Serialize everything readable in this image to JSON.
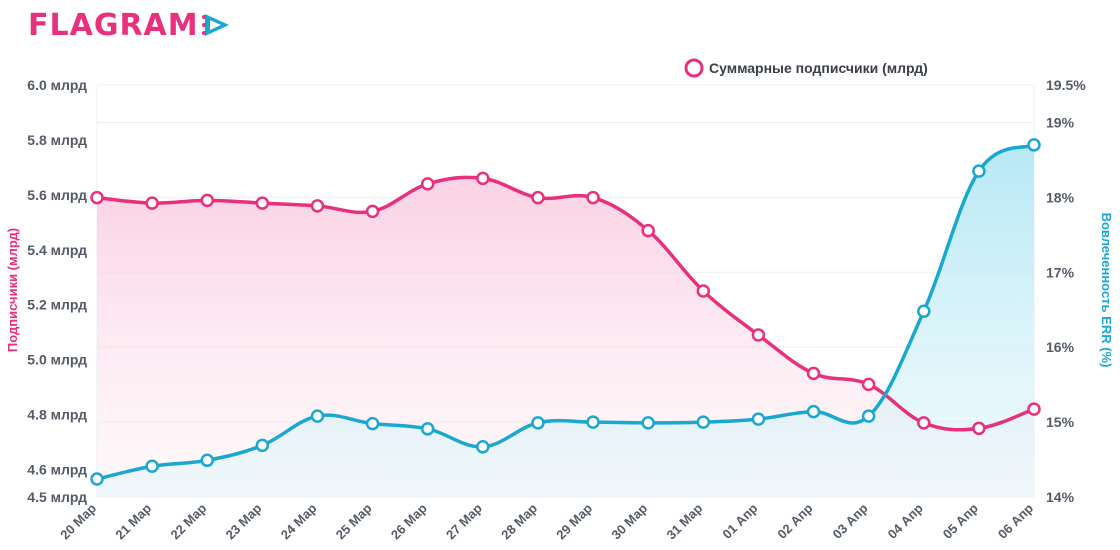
{
  "brand": {
    "name": "FLAGRAM",
    "colors": {
      "primary": "#e8307f",
      "secondary": "#1aa7d2"
    }
  },
  "chart_data": {
    "type": "line",
    "title": "",
    "categories": [
      "20 Мар",
      "21 Мар",
      "22 Мар",
      "23 Мар",
      "24 Мар",
      "25 Мар",
      "26 Мар",
      "27 Мар",
      "28 Мар",
      "29 Мар",
      "30 Мар",
      "31 Мар",
      "01 Апр",
      "02 Апр",
      "03 Апр",
      "04 Апр",
      "05 Апр",
      "06 Апр"
    ],
    "legend": {
      "position": "top-right",
      "entries": [
        "Суммарные подписчики (млрд)"
      ]
    },
    "series": [
      {
        "name": "Суммарные подписчики (млрд)",
        "axis": "left",
        "color": "#e8307f",
        "values": [
          5.59,
          5.57,
          5.58,
          5.57,
          5.56,
          5.54,
          5.64,
          5.66,
          5.59,
          5.59,
          5.47,
          5.25,
          5.09,
          4.95,
          4.91,
          4.77,
          4.75,
          4.82
        ]
      },
      {
        "name": "",
        "axis": "right",
        "color": "#1aa7d2",
        "values": [
          14.24,
          14.41,
          14.49,
          14.69,
          15.08,
          14.98,
          14.91,
          14.67,
          14.99,
          15.0,
          14.99,
          15.0,
          15.04,
          15.14,
          15.08,
          16.48,
          18.35,
          18.7
        ]
      }
    ],
    "y_left": {
      "label": "Подписчики (млрд)",
      "ylim": [
        4.5,
        6.0
      ],
      "ticks": [
        6.0,
        5.8,
        5.6,
        5.4,
        5.2,
        5.0,
        4.8,
        4.6,
        4.5
      ],
      "tick_labels": [
        "6.0 млрд",
        "5.8 млрд",
        "5.6 млрд",
        "5.4 млрд",
        "5.2 млрд",
        "5.0 млрд",
        "4.8 млрд",
        "4.6 млрд",
        "4.5 млрд"
      ]
    },
    "y_right": {
      "label": "Вовлеченность ERR (%)",
      "ylim": [
        14,
        19.5
      ],
      "ticks": [
        19.5,
        19,
        18,
        17,
        16,
        15,
        14
      ],
      "tick_labels": [
        "19.5%",
        "19%",
        "18%",
        "17%",
        "16%",
        "15%",
        "14%"
      ]
    },
    "grid": true
  }
}
